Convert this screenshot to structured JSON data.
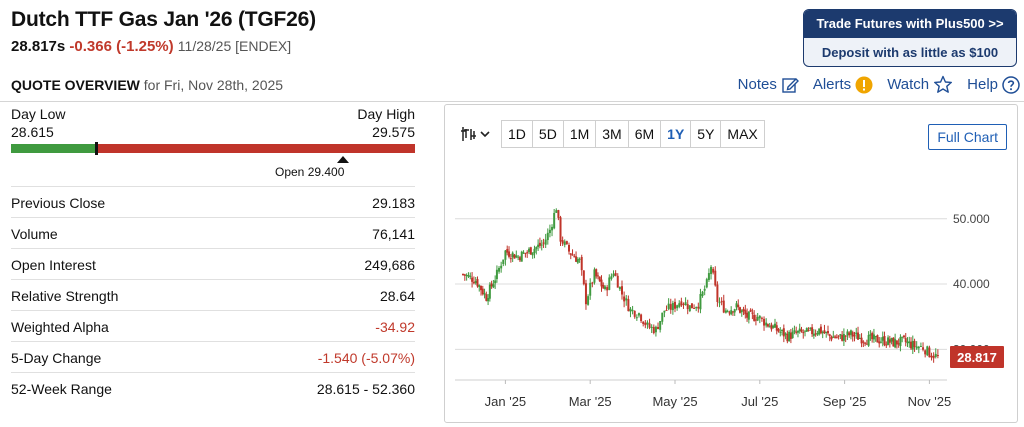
{
  "header": {
    "title": "Dutch TTF Gas Jan '26 (TGF26)",
    "last_price": "28.817s",
    "change": "-0.366 (-1.25%)",
    "date_exchange": "11/28/25 [ENDEX]"
  },
  "promo": {
    "line1": "Trade Futures with Plus500 >>",
    "line2": "Deposit with as little as $100"
  },
  "overview": {
    "label": "QUOTE OVERVIEW",
    "for_date": "for Fri, Nov 28th, 2025"
  },
  "links": {
    "notes": "Notes",
    "alerts": "Alerts",
    "watch": "Watch",
    "help": "Help"
  },
  "day_range": {
    "low_label": "Day Low",
    "low_value": "28.615",
    "high_label": "Day High",
    "high_value": "29.575",
    "open_label": "Open 29.400",
    "last_fraction": 0.21,
    "open_fraction": 0.821
  },
  "stats": [
    {
      "label": "Previous Close",
      "value": "29.183",
      "neg": false
    },
    {
      "label": "Volume",
      "value": "76,141",
      "neg": false
    },
    {
      "label": "Open Interest",
      "value": "249,686",
      "neg": false
    },
    {
      "label": "Relative Strength",
      "value": "28.64",
      "neg": false
    },
    {
      "label": "Weighted Alpha",
      "value": "-34.92",
      "neg": true
    },
    {
      "label": "5-Day Change",
      "value": "-1.540 (-5.07%)",
      "neg": true
    },
    {
      "label": "52-Week Range",
      "value": "28.615 - 52.360",
      "neg": false
    }
  ],
  "chart_toolbar": {
    "ranges": [
      "1D",
      "5D",
      "1M",
      "3M",
      "6M",
      "1Y",
      "5Y",
      "MAX"
    ],
    "active": "1Y",
    "full_chart": "Full Chart"
  },
  "colors": {
    "up": "#3f9a3f",
    "down": "#c0342a",
    "link": "#1f4e96",
    "last_badge": "#c0342a",
    "promo_dark": "#1c3a6e"
  },
  "chart_data": {
    "type": "candlestick",
    "x_tick_labels": [
      "Jan '25",
      "Mar '25",
      "May '25",
      "Jul '25",
      "Sep '25",
      "Nov '25"
    ],
    "y_tick_labels": [
      "50.000",
      "40.000",
      "30.000"
    ],
    "y_ticks": [
      50,
      40,
      30
    ],
    "ylim": [
      25.3,
      59
    ],
    "last_value": "28.817",
    "grid": "horizontal",
    "series": [
      {
        "m": 0.0,
        "v": 41.5
      },
      {
        "m": 0.3,
        "v": 40.6
      },
      {
        "m": 0.55,
        "v": 38.0
      },
      {
        "m": 0.8,
        "v": 41.5
      },
      {
        "m": 1.0,
        "v": 45.0
      },
      {
        "m": 1.3,
        "v": 44.2
      },
      {
        "m": 1.6,
        "v": 45.2
      },
      {
        "m": 1.9,
        "v": 46.2
      },
      {
        "m": 2.05,
        "v": 48.3
      },
      {
        "m": 2.2,
        "v": 51.8
      },
      {
        "m": 2.3,
        "v": 47.0
      },
      {
        "m": 2.5,
        "v": 45.0
      },
      {
        "m": 2.75,
        "v": 43.5
      },
      {
        "m": 2.9,
        "v": 37.5
      },
      {
        "m": 3.1,
        "v": 41.5
      },
      {
        "m": 3.35,
        "v": 39.0
      },
      {
        "m": 3.55,
        "v": 42.0
      },
      {
        "m": 3.75,
        "v": 38.5
      },
      {
        "m": 3.95,
        "v": 36.0
      },
      {
        "m": 4.15,
        "v": 35.5
      },
      {
        "m": 4.35,
        "v": 33.5
      },
      {
        "m": 4.55,
        "v": 33.0
      },
      {
        "m": 4.75,
        "v": 36.0
      },
      {
        "m": 4.95,
        "v": 36.5
      },
      {
        "m": 5.15,
        "v": 37.5
      },
      {
        "m": 5.35,
        "v": 36.5
      },
      {
        "m": 5.55,
        "v": 37.0
      },
      {
        "m": 5.75,
        "v": 40.0
      },
      {
        "m": 5.85,
        "v": 42.8
      },
      {
        "m": 6.0,
        "v": 37.5
      },
      {
        "m": 6.2,
        "v": 36.0
      },
      {
        "m": 6.45,
        "v": 36.5
      },
      {
        "m": 6.7,
        "v": 35.0
      },
      {
        "m": 6.95,
        "v": 35.0
      },
      {
        "m": 7.15,
        "v": 34.0
      },
      {
        "m": 7.4,
        "v": 33.0
      },
      {
        "m": 7.65,
        "v": 32.0
      },
      {
        "m": 7.9,
        "v": 32.5
      },
      {
        "m": 8.15,
        "v": 32.5
      },
      {
        "m": 8.4,
        "v": 33.0
      },
      {
        "m": 8.65,
        "v": 32.0
      },
      {
        "m": 8.9,
        "v": 31.8
      },
      {
        "m": 9.15,
        "v": 32.3
      },
      {
        "m": 9.4,
        "v": 31.7
      },
      {
        "m": 9.65,
        "v": 31.5
      },
      {
        "m": 9.9,
        "v": 31.4
      },
      {
        "m": 10.15,
        "v": 31.0
      },
      {
        "m": 10.4,
        "v": 31.2
      },
      {
        "m": 10.65,
        "v": 30.5
      },
      {
        "m": 10.85,
        "v": 30.3
      },
      {
        "m": 11.0,
        "v": 29.4
      },
      {
        "m": 11.2,
        "v": 28.817
      }
    ]
  }
}
